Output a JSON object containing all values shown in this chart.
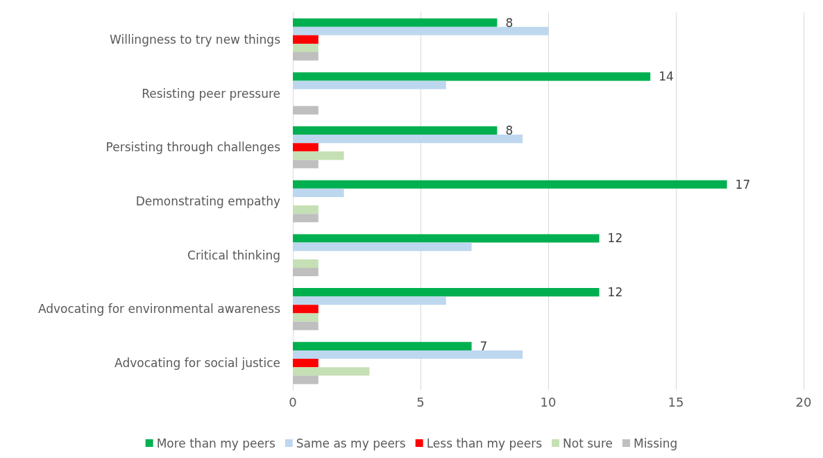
{
  "chart_data": {
    "type": "bar",
    "orientation": "horizontal",
    "categories": [
      "Willingness to try new things",
      "Resisting peer pressure",
      "Persisting through challenges",
      "Demonstrating empathy",
      "Critical thinking",
      "Advocating for environmental awareness",
      "Advocating for social justice"
    ],
    "series": [
      {
        "name": "More than my peers",
        "color": "#00b050",
        "values": [
          8,
          14,
          8,
          17,
          12,
          12,
          7
        ],
        "value_labels": [
          "8",
          "14",
          "8",
          "17",
          "12",
          "12",
          "7"
        ]
      },
      {
        "name": "Same as my peers",
        "color": "#bdd7ee",
        "values": [
          10,
          6,
          9,
          2,
          7,
          6,
          9
        ]
      },
      {
        "name": "Less than my peers",
        "color": "#ff0000",
        "values": [
          1,
          null,
          1,
          null,
          null,
          1,
          1
        ]
      },
      {
        "name": "Not sure",
        "color": "#c5e0b4",
        "values": [
          1,
          null,
          2,
          1,
          1,
          1,
          3
        ]
      },
      {
        "name": "Missing",
        "color": "#bfbfbf",
        "values": [
          1,
          1,
          1,
          1,
          1,
          1,
          1
        ]
      }
    ],
    "xlim": [
      0,
      20
    ],
    "xticks": [
      0,
      5,
      10,
      15,
      20
    ],
    "grid": "x",
    "legend": "bottom"
  }
}
